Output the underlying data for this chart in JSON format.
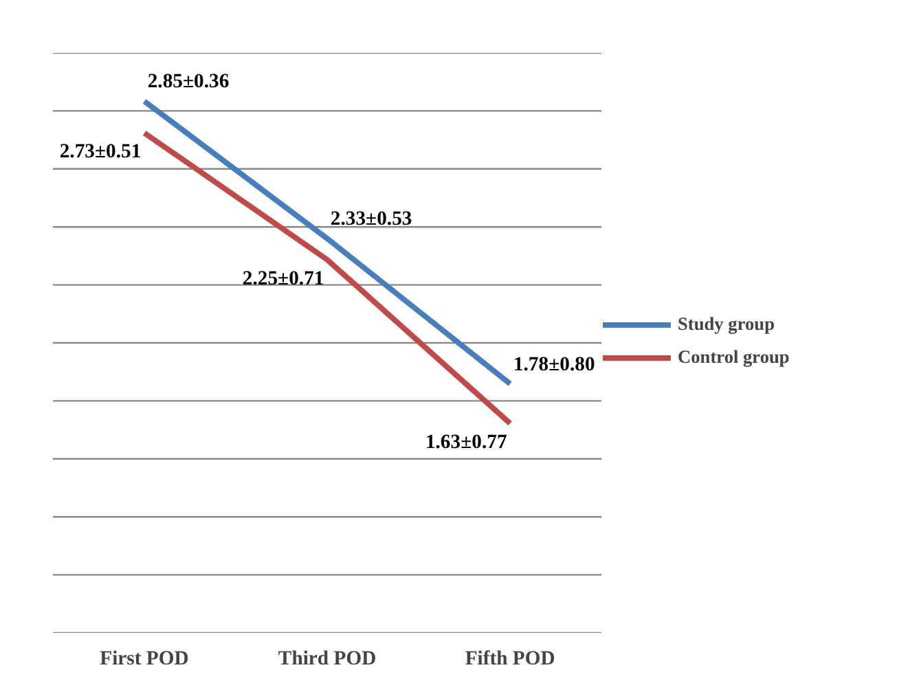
{
  "chart_data": {
    "type": "line",
    "categories": [
      "First POD",
      "Third POD",
      "Fifth POD"
    ],
    "series": [
      {
        "name": "Study group",
        "color": "#4a7ebb",
        "values": [
          2.85,
          2.33,
          1.78
        ],
        "value_labels": [
          "2.85±0.36",
          "2.33±0.53",
          "1.78±0.80"
        ]
      },
      {
        "name": "Control group",
        "color": "#be4b48",
        "values": [
          2.73,
          2.25,
          1.63
        ],
        "value_labels": [
          "2.73±0.51",
          "2.25±0.71",
          "1.63±0.77"
        ]
      }
    ],
    "grid": "y",
    "legend": "right"
  }
}
